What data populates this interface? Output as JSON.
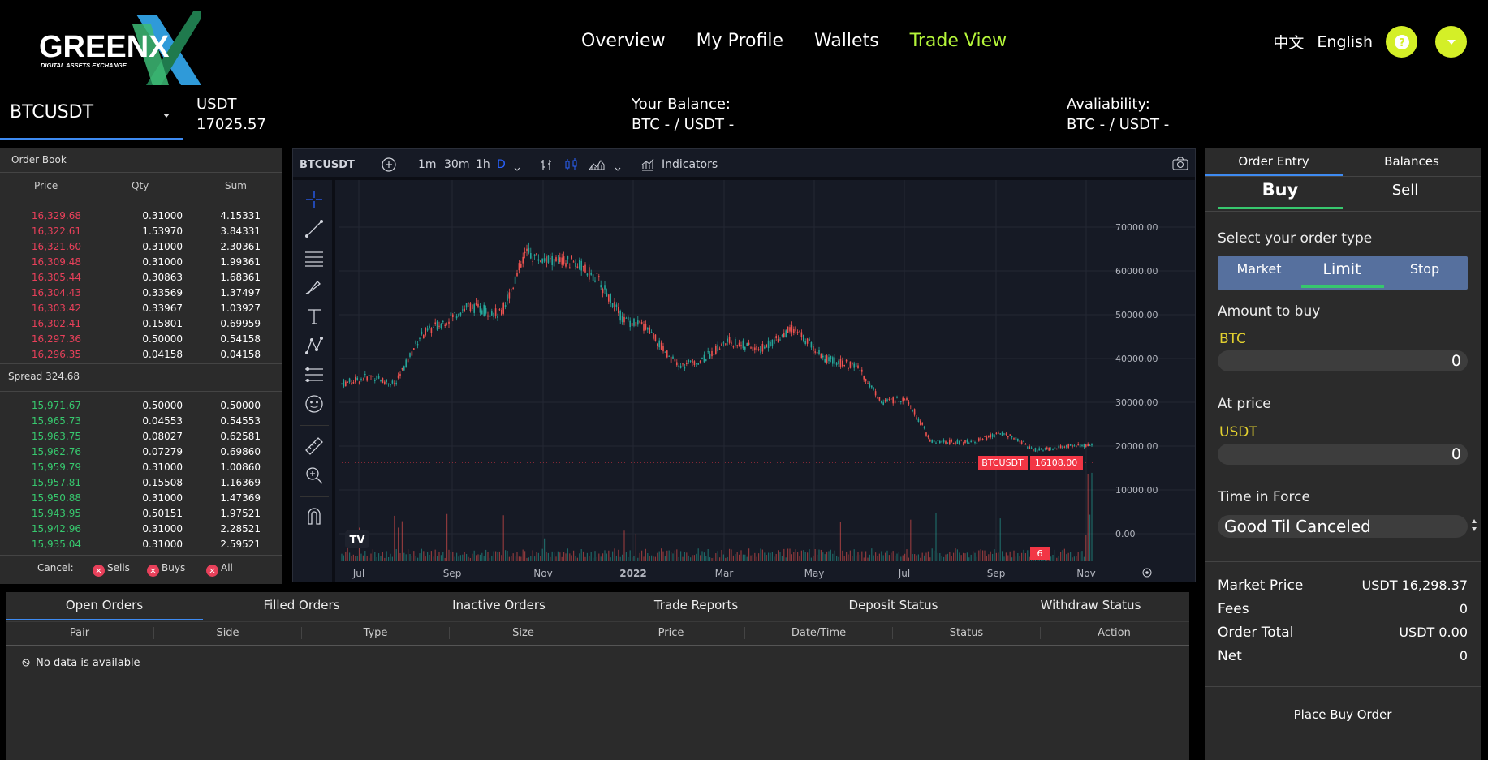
{
  "header": {
    "logo_text": "GREENX",
    "logo_tagline": "DIGITAL ASSETS EXCHANGE",
    "nav": [
      "Overview",
      "My Profile",
      "Wallets",
      "Trade View"
    ],
    "active_nav": "Trade View",
    "lang_zh": "中文",
    "lang_en": "English",
    "accent_color": "#d4ef27"
  },
  "info_bar": {
    "pair": "BTCUSDT",
    "quote_label": "USDT",
    "quote_value": "17025.57",
    "balance_label": "Your Balance:",
    "balance_value": "BTC - / USDT -",
    "avail_label": "Avaliability:",
    "avail_value": "BTC - / USDT -"
  },
  "order_book": {
    "title": "Order Book",
    "headers": [
      "Price",
      "Qty",
      "Sum"
    ],
    "sells": [
      [
        "16,329.68",
        "0.31000",
        "4.15331"
      ],
      [
        "16,322.61",
        "1.53970",
        "3.84331"
      ],
      [
        "16,321.60",
        "0.31000",
        "2.30361"
      ],
      [
        "16,309.48",
        "0.31000",
        "1.99361"
      ],
      [
        "16,305.44",
        "0.30863",
        "1.68361"
      ],
      [
        "16,304.43",
        "0.33569",
        "1.37497"
      ],
      [
        "16,303.42",
        "0.33967",
        "1.03927"
      ],
      [
        "16,302.41",
        "0.15801",
        "0.69959"
      ],
      [
        "16,297.36",
        "0.50000",
        "0.54158"
      ],
      [
        "16,296.35",
        "0.04158",
        "0.04158"
      ]
    ],
    "spread": "Spread 324.68",
    "buys": [
      [
        "15,971.67",
        "0.50000",
        "0.50000"
      ],
      [
        "15,965.73",
        "0.04553",
        "0.54553"
      ],
      [
        "15,963.75",
        "0.08027",
        "0.62581"
      ],
      [
        "15,962.76",
        "0.07279",
        "0.69860"
      ],
      [
        "15,959.79",
        "0.31000",
        "1.00860"
      ],
      [
        "15,957.81",
        "0.15508",
        "1.16369"
      ],
      [
        "15,950.88",
        "0.31000",
        "1.47369"
      ],
      [
        "15,943.95",
        "0.50151",
        "1.97521"
      ],
      [
        "15,942.96",
        "0.31000",
        "2.28521"
      ],
      [
        "15,935.04",
        "0.31000",
        "2.59521"
      ]
    ],
    "cancel_label": "Cancel:",
    "cancel_sells": "Sells",
    "cancel_buys": "Buys",
    "cancel_all": "All"
  },
  "chart": {
    "symbol": "BTCUSDT",
    "intervals": [
      "1m",
      "30m",
      "1h",
      "D"
    ],
    "indicators_label": "Indicators",
    "price_ticks": [
      "70000.00",
      "60000.00",
      "50000.00",
      "40000.00",
      "30000.00",
      "20000.00",
      "10000.00",
      "0.00"
    ],
    "time_ticks": [
      "Jul",
      "Sep",
      "Nov",
      "2022",
      "Mar",
      "May",
      "Jul",
      "Sep",
      "Nov"
    ],
    "last_price_label": "BTCUSDT",
    "last_price": "16108.00",
    "volume_badge": "6"
  },
  "order_entry": {
    "tabs": [
      "Order Entry",
      "Balances"
    ],
    "sides": [
      "Buy",
      "Sell"
    ],
    "order_type_label": "Select your order type",
    "order_types": [
      "Market",
      "Limit",
      "Stop"
    ],
    "amount_label": "Amount to buy",
    "amount_unit": "BTC",
    "amount_value": "0",
    "price_label": "At price",
    "price_unit": "USDT",
    "price_value": "0",
    "tif_label": "Time in Force",
    "tif_value": "Good Til Canceled",
    "market_price_label": "Market Price",
    "market_price_value": "USDT 16,298.37",
    "fees_label": "Fees",
    "fees_value": "0",
    "order_total_label": "Order Total",
    "order_total_value": "USDT 0.00",
    "net_label": "Net",
    "net_value": "0",
    "place_button": "Place Buy Order"
  },
  "orders": {
    "tabs": [
      "Open Orders",
      "Filled Orders",
      "Inactive Orders",
      "Trade Reports",
      "Deposit Status",
      "Withdraw Status"
    ],
    "columns": [
      "Pair",
      "Side",
      "Type",
      "Size",
      "Price",
      "Date/Time",
      "Status",
      "Action"
    ],
    "empty_text": "No data is available"
  }
}
